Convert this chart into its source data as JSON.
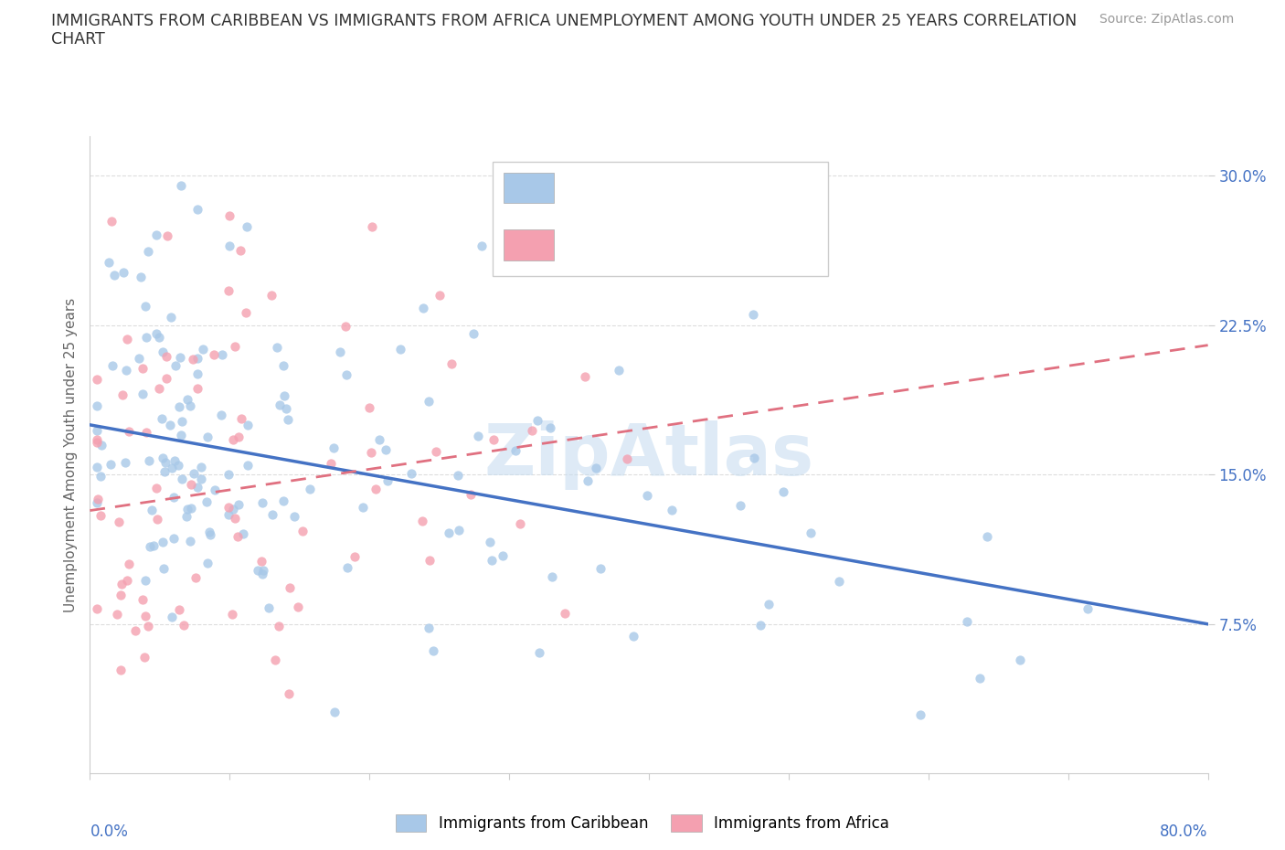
{
  "title_line1": "IMMIGRANTS FROM CARIBBEAN VS IMMIGRANTS FROM AFRICA UNEMPLOYMENT AMONG YOUTH UNDER 25 YEARS CORRELATION",
  "title_line2": "CHART",
  "source": "Source: ZipAtlas.com",
  "ylabel": "Unemployment Among Youth under 25 years",
  "xrange": [
    0.0,
    0.8
  ],
  "yrange": [
    0.0,
    0.32
  ],
  "ytick_vals": [
    0.075,
    0.15,
    0.225,
    0.3
  ],
  "ytick_labels": [
    "7.5%",
    "15.0%",
    "22.5%",
    "30.0%"
  ],
  "color_caribbean": "#a8c8e8",
  "color_africa": "#f4a0b0",
  "line_caribbean": "#4472c4",
  "line_africa": "#e07080",
  "legend_text_color": "#4472c4",
  "watermark_color": "#c8ddf0",
  "title_color": "#333333",
  "source_color": "#999999",
  "ylabel_color": "#666666",
  "ytick_color": "#4472c4",
  "grid_color": "#dddddd",
  "spine_color": "#cccccc",
  "n_caribbean": 143,
  "n_africa": 73,
  "carib_line_start_y": 0.175,
  "carib_line_end_y": 0.075,
  "africa_line_start_y": 0.132,
  "africa_line_end_y": 0.215
}
